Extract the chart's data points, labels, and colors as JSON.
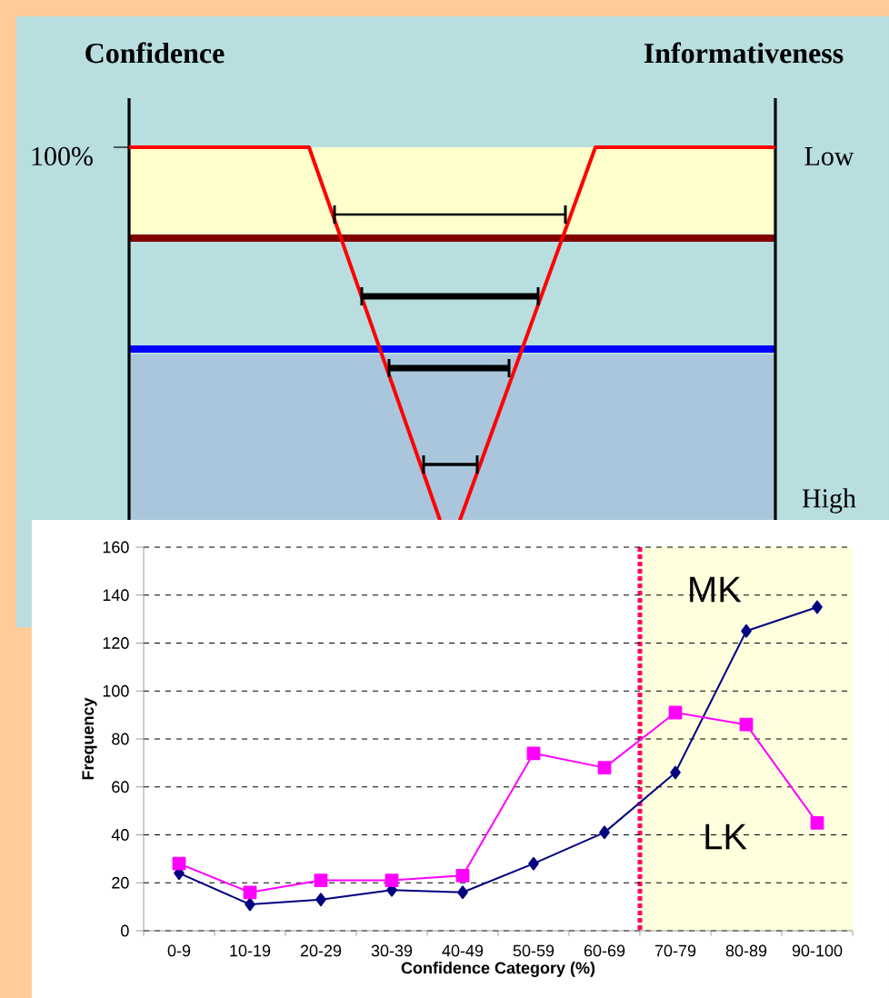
{
  "chart_data": [
    {
      "type": "other",
      "annotations": [
        "Confidence",
        "Informativeness",
        "100%",
        "Low",
        "High"
      ]
    },
    {
      "type": "line",
      "categories": [
        "0-9",
        "10-19",
        "20-29",
        "30-39",
        "40-49",
        "50-59",
        "60-69",
        "70-79",
        "80-89",
        "90-100"
      ],
      "series": [
        {
          "name": "MK",
          "color": "#000080",
          "marker": "diamond",
          "values": [
            24,
            11,
            13,
            17,
            16,
            28,
            41,
            66,
            125,
            135
          ]
        },
        {
          "name": "LK",
          "color": "#ff00ff",
          "marker": "square",
          "values": [
            28,
            16,
            21,
            21,
            23,
            74,
            68,
            91,
            86,
            45
          ]
        }
      ],
      "ylim": [
        0,
        160
      ],
      "yticks": [
        0,
        20,
        40,
        60,
        80,
        100,
        120,
        140,
        160
      ],
      "xlabel": "Confidence Category (%)",
      "ylabel": "Frequency",
      "grid": "y"
    }
  ]
}
